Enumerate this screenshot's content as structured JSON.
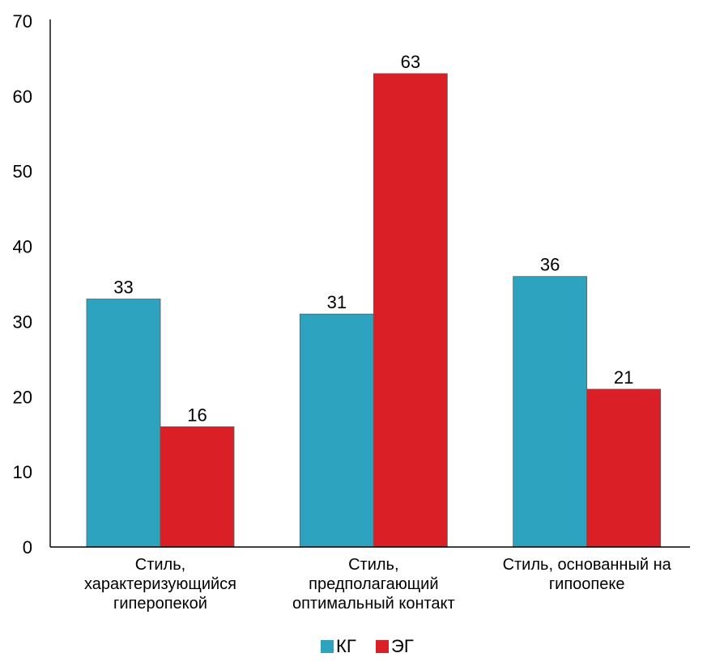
{
  "colors": {
    "series_kg": "#2EA3C0",
    "series_eg": "#DA1F27",
    "axis": "#000000",
    "bar_edge": "#5a5a5a"
  },
  "chart_data": {
    "type": "bar",
    "categories": [
      [
        "Стиль,",
        "характеризующийся",
        "гиперопекой"
      ],
      [
        "Стиль,",
        "предполагающий",
        "оптимальный  контакт"
      ],
      [
        "Стиль, основанный на",
        "гипоопеке"
      ]
    ],
    "series": [
      {
        "name": "КГ",
        "values": [
          33,
          31,
          36
        ],
        "color": "#2EA3C0"
      },
      {
        "name": "ЭГ",
        "values": [
          16,
          63,
          21
        ],
        "color": "#DA1F27"
      }
    ],
    "ylim": [
      0,
      70
    ],
    "yticks": [
      0,
      10,
      20,
      30,
      40,
      50,
      60,
      70
    ],
    "title": "",
    "xlabel": "",
    "ylabel": "",
    "grid": false,
    "legend_position": "bottom-center",
    "data_labels": true
  }
}
